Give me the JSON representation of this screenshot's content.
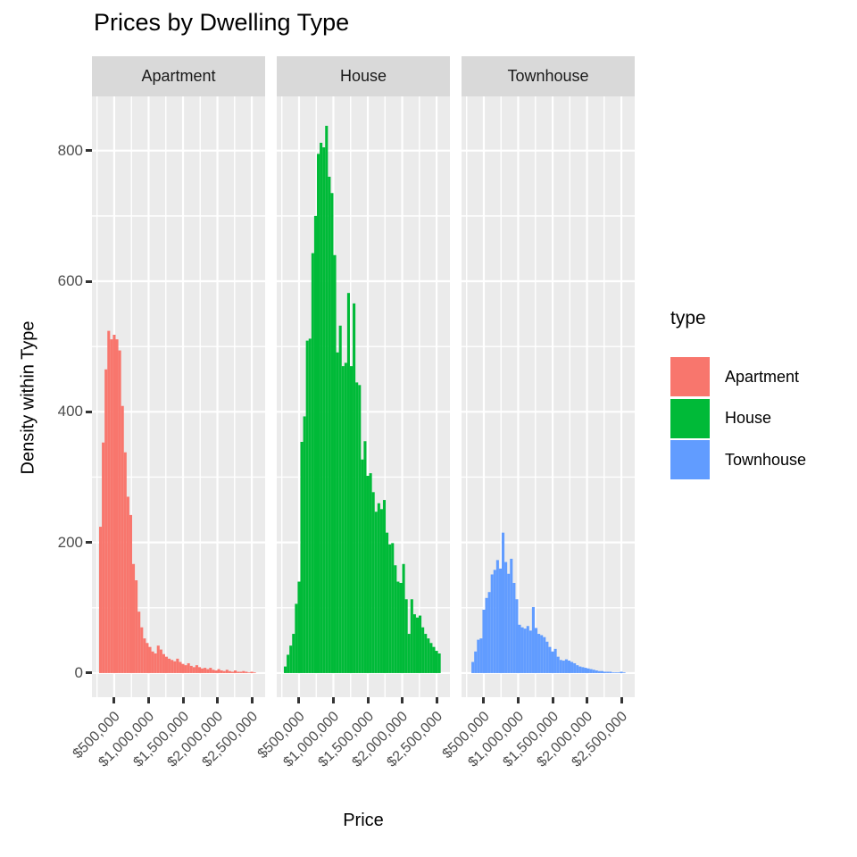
{
  "title": "Prices by Dwelling Type",
  "facets": [
    "Apartment",
    "House",
    "Townhouse"
  ],
  "axes": {
    "x_title": "Price",
    "y_title": "Density within Type",
    "y_ticks": [
      "800",
      "600",
      "400",
      "200",
      "0"
    ],
    "x_tick_labels": [
      "$500,000",
      "$1,000,000",
      "$1,500,000",
      "$2,000,000",
      "$2,500,000"
    ]
  },
  "legend": {
    "title": "type",
    "items": [
      {
        "label": "Apartment",
        "color": "#F8766D"
      },
      {
        "label": "House",
        "color": "#00BA38"
      },
      {
        "label": "Townhouse",
        "color": "#619CFF"
      }
    ]
  },
  "colors": {
    "panel_background": "#EBEBEB",
    "strip_background": "#D9D9D9",
    "gridline": "#FFFFFF",
    "axis_text": "#4D4D4D",
    "tick_mark": "#333333"
  },
  "chart_data": {
    "type": "bar",
    "subtype": "faceted-histogram",
    "title": "Prices by Dwelling Type",
    "xlabel": "Price",
    "ylabel": "Density within Type",
    "facet_variable": "type",
    "facets": [
      "Apartment",
      "House",
      "Townhouse"
    ],
    "x_tick_values": [
      500000,
      1000000,
      1500000,
      2000000,
      2500000
    ],
    "y_tick_values": [
      0,
      200,
      400,
      600,
      800
    ],
    "x_domain": [
      176000,
      2694000
    ],
    "y_domain": [
      -37,
      883
    ],
    "x_major_gridlines": [
      500000,
      1000000,
      1500000,
      2000000,
      2500000
    ],
    "x_minor_gridlines": [
      250000,
      750000,
      1250000,
      1750000,
      2250000
    ],
    "y_major_gridlines": [
      0,
      200,
      400,
      600,
      800
    ],
    "y_minor_gridlines": [
      100,
      300,
      500,
      700
    ],
    "grid": true,
    "legend_position": "right",
    "bin_start": 280000,
    "bin_width": 40000,
    "series": [
      {
        "name": "Apartment",
        "color": "#F8766D",
        "bin_counts": [
          224,
          353,
          465,
          524,
          511,
          518,
          511,
          494,
          409,
          338,
          270,
          242,
          167,
          142,
          94,
          70,
          53,
          46,
          40,
          33,
          30,
          42,
          36,
          29,
          25,
          22,
          20,
          18,
          22,
          17,
          14,
          12,
          15,
          11,
          9,
          12,
          9,
          7,
          8,
          6,
          8,
          5,
          4,
          6,
          4,
          3,
          5,
          3,
          2,
          4,
          2,
          2,
          3,
          2,
          1,
          2,
          1
        ]
      },
      {
        "name": "House",
        "color": "#00BA38",
        "bin_counts": [
          10,
          28,
          42,
          60,
          106,
          140,
          354,
          393,
          509,
          512,
          643,
          700,
          795,
          812,
          805,
          838,
          760,
          735,
          640,
          491,
          532,
          470,
          475,
          582,
          470,
          566,
          445,
          441,
          327,
          355,
          302,
          306,
          277,
          247,
          260,
          251,
          265,
          215,
          197,
          199,
          165,
          140,
          138,
          167,
          113,
          60,
          113,
          90,
          85,
          88,
          70,
          60,
          53,
          46,
          40,
          34,
          30
        ]
      },
      {
        "name": "Townhouse",
        "color": "#619CFF",
        "bin_counts": [
          0,
          17,
          33,
          51,
          53,
          97,
          115,
          124,
          151,
          158,
          173,
          160,
          215,
          170,
          152,
          175,
          138,
          113,
          74,
          70,
          68,
          72,
          65,
          101,
          69,
          60,
          58,
          55,
          48,
          40,
          33,
          37,
          25,
          20,
          19,
          21,
          19,
          17,
          15,
          12,
          10,
          9,
          8,
          7,
          6,
          5,
          4,
          3,
          3,
          2,
          2,
          2,
          1,
          1,
          1,
          2,
          1
        ]
      }
    ]
  }
}
